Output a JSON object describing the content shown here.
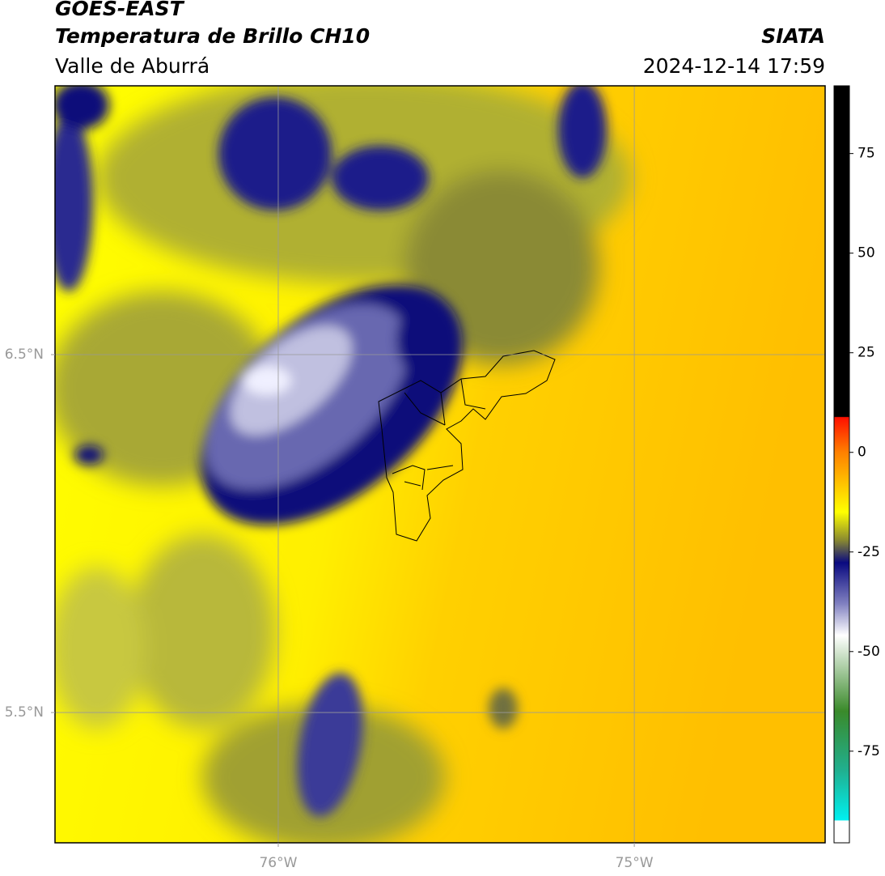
{
  "header": {
    "satellite": "GOES-EAST",
    "product": "Temperatura de Brillo CH10",
    "region": "Valle de Aburrá",
    "org": "SIATA",
    "datetime": "2024-12-14 17:59"
  },
  "map": {
    "xlim": [
      -76.627,
      -74.464
    ],
    "ylim": [
      5.136,
      7.251
    ],
    "xticks": [
      {
        "value": -76,
        "label": "76°W"
      },
      {
        "value": -75,
        "label": "75°W"
      }
    ],
    "yticks": [
      {
        "value": 6.5,
        "label": "6.5°N"
      },
      {
        "value": 5.5,
        "label": "5.5°N"
      }
    ],
    "grid": true
  },
  "colorbar": {
    "lim": [
      -98,
      92
    ],
    "ticks": [
      75,
      50,
      25,
      0,
      -25,
      -50,
      -75
    ]
  }
}
